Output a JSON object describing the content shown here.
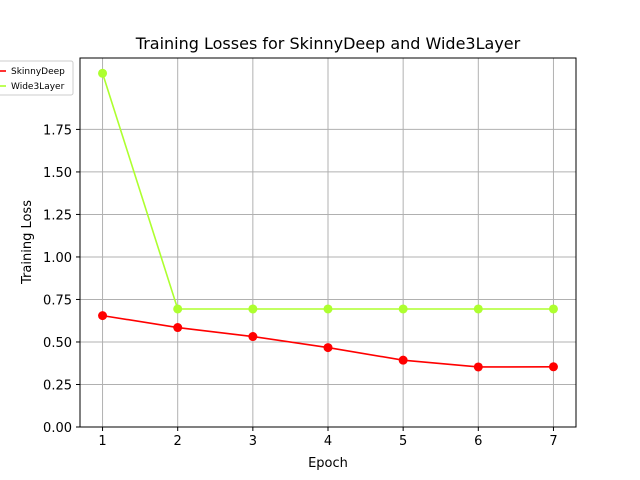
{
  "chart_data": {
    "type": "line",
    "title": "Training Losses for SkinnyDeep and Wide3Layer",
    "xlabel": "Epoch",
    "ylabel": "Training Loss",
    "x": [
      1,
      2,
      3,
      4,
      5,
      6,
      7
    ],
    "x_tick_labels": [
      "1",
      "2",
      "3",
      "4",
      "5",
      "6",
      "7"
    ],
    "y_tick_labels": [
      "0.00",
      "0.25",
      "0.50",
      "0.75",
      "1.00",
      "1.25",
      "1.50",
      "1.75"
    ],
    "ylim": [
      0,
      2.17
    ],
    "xlim": [
      0.7,
      7.3
    ],
    "grid": true,
    "legend_position": "top-left",
    "series": [
      {
        "name": "SkinnyDeep",
        "color": "#ff0000",
        "marker": "circle",
        "values": [
          0.655,
          0.585,
          0.532,
          0.467,
          0.393,
          0.353,
          0.354
        ]
      },
      {
        "name": "Wide3Layer",
        "color": "#adff2f",
        "marker": "circle",
        "values": [
          2.08,
          0.694,
          0.694,
          0.694,
          0.694,
          0.694,
          0.694
        ]
      }
    ]
  }
}
